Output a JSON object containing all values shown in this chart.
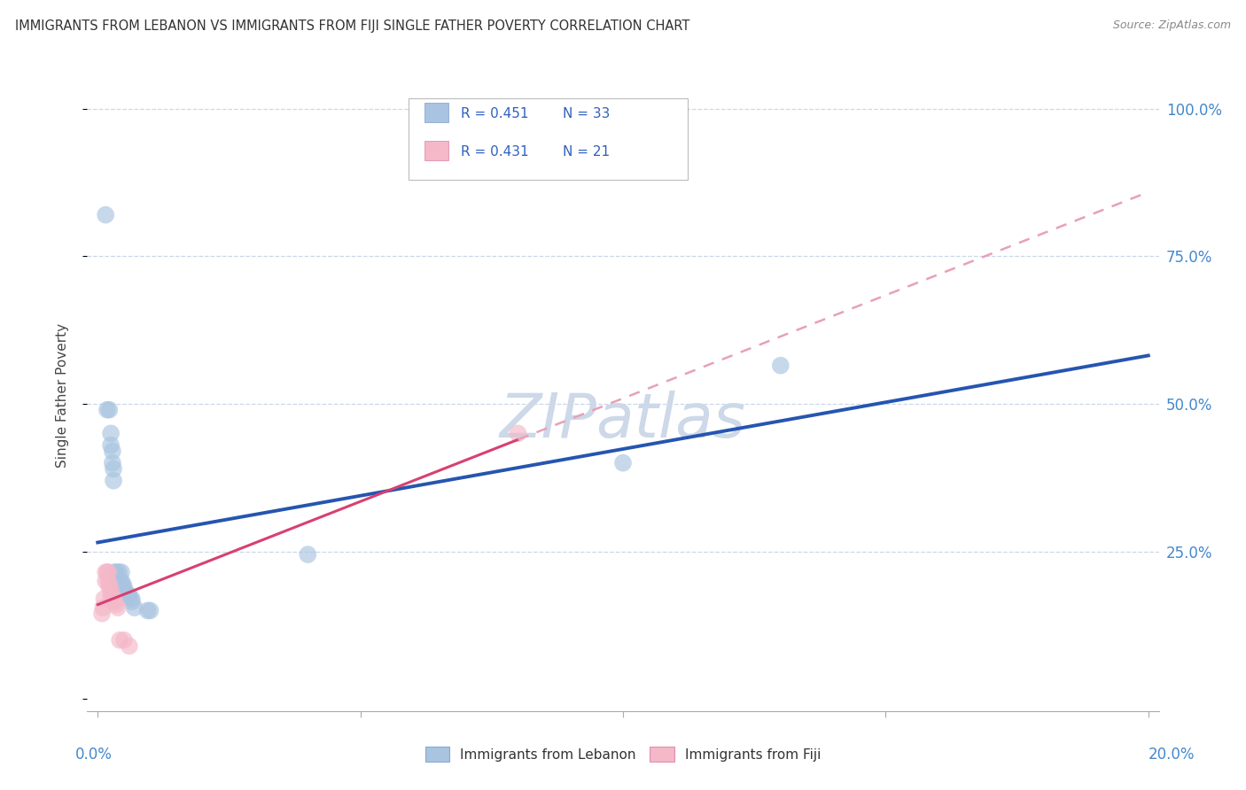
{
  "title": "IMMIGRANTS FROM LEBANON VS IMMIGRANTS FROM FIJI SINGLE FATHER POVERTY CORRELATION CHART",
  "source": "Source: ZipAtlas.com",
  "ylabel": "Single Father Poverty",
  "legend_label1": "Immigrants from Lebanon",
  "legend_label2": "Immigrants from Fiji",
  "R1": 0.451,
  "N1": 33,
  "R2": 0.431,
  "N2": 21,
  "color_lebanon": "#a8c4e0",
  "color_fiji": "#f4b8c8",
  "color_line_lebanon": "#2555b0",
  "color_line_fiji": "#d84070",
  "color_line_fiji_dash": "#e8a0b8",
  "watermark_color": "#cdd8e8",
  "x_min": 0.0,
  "x_max": 0.2,
  "y_min": -0.02,
  "y_max": 1.05,
  "lebanon_points": [
    [
      0.0015,
      0.82
    ],
    [
      0.0018,
      0.49
    ],
    [
      0.0022,
      0.49
    ],
    [
      0.0025,
      0.45
    ],
    [
      0.0025,
      0.43
    ],
    [
      0.0028,
      0.42
    ],
    [
      0.0028,
      0.4
    ],
    [
      0.003,
      0.39
    ],
    [
      0.003,
      0.37
    ],
    [
      0.0032,
      0.215
    ],
    [
      0.0035,
      0.215
    ],
    [
      0.0035,
      0.2
    ],
    [
      0.0038,
      0.2
    ],
    [
      0.004,
      0.215
    ],
    [
      0.004,
      0.2
    ],
    [
      0.0042,
      0.195
    ],
    [
      0.0045,
      0.215
    ],
    [
      0.0045,
      0.2
    ],
    [
      0.0048,
      0.195
    ],
    [
      0.005,
      0.19
    ],
    [
      0.005,
      0.185
    ],
    [
      0.0052,
      0.18
    ],
    [
      0.0055,
      0.18
    ],
    [
      0.0058,
      0.175
    ],
    [
      0.006,
      0.175
    ],
    [
      0.0065,
      0.17
    ],
    [
      0.0065,
      0.165
    ],
    [
      0.007,
      0.155
    ],
    [
      0.0095,
      0.15
    ],
    [
      0.01,
      0.15
    ],
    [
      0.04,
      0.245
    ],
    [
      0.1,
      0.4
    ],
    [
      0.13,
      0.565
    ]
  ],
  "fiji_points": [
    [
      0.0008,
      0.145
    ],
    [
      0.001,
      0.155
    ],
    [
      0.0012,
      0.17
    ],
    [
      0.0015,
      0.215
    ],
    [
      0.0015,
      0.2
    ],
    [
      0.0018,
      0.215
    ],
    [
      0.002,
      0.215
    ],
    [
      0.002,
      0.2
    ],
    [
      0.0022,
      0.195
    ],
    [
      0.0022,
      0.19
    ],
    [
      0.0025,
      0.185
    ],
    [
      0.0025,
      0.175
    ],
    [
      0.0028,
      0.175
    ],
    [
      0.003,
      0.17
    ],
    [
      0.0032,
      0.165
    ],
    [
      0.0035,
      0.16
    ],
    [
      0.0038,
      0.155
    ],
    [
      0.0042,
      0.1
    ],
    [
      0.005,
      0.1
    ],
    [
      0.006,
      0.09
    ],
    [
      0.08,
      0.45
    ]
  ]
}
